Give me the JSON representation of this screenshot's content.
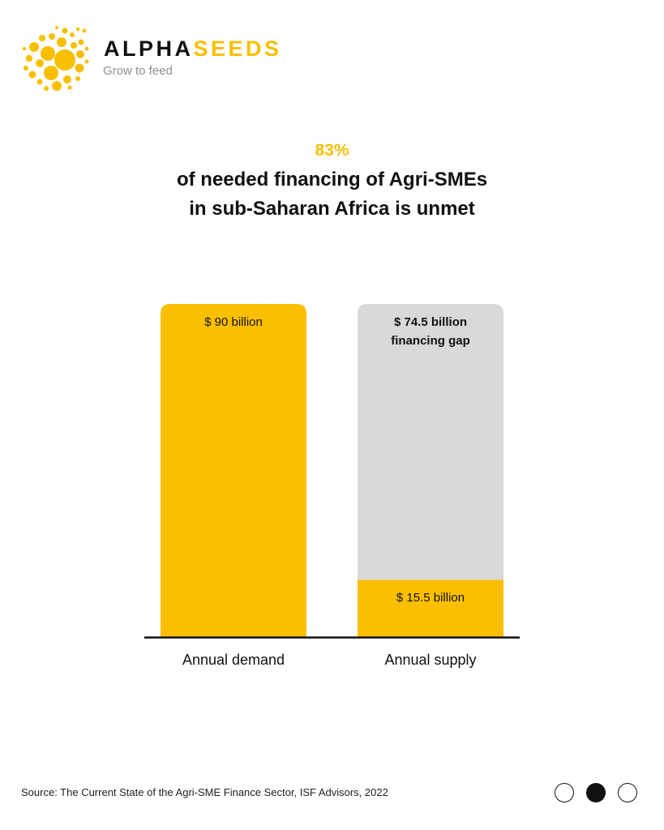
{
  "brand": {
    "name_part1": "ALPHA",
    "name_part2": "SEEDS",
    "tagline": "Grow to feed",
    "logo_icon": "seed-cluster-icon",
    "accent_color": "#f8bf00"
  },
  "headline": {
    "percent": "83%",
    "line1": "of needed financing of Agri-SMEs",
    "line2": "in sub-Saharan Africa is unmet"
  },
  "chart_data": {
    "type": "bar",
    "stacked": true,
    "categories": [
      "Annual demand",
      "Annual supply"
    ],
    "unit": "$ billion",
    "ylim": [
      0,
      90
    ],
    "grid": false,
    "legend": "none",
    "bars": [
      {
        "category": "Annual demand",
        "segments": [
          {
            "value": 90,
            "label": "$ 90 billion",
            "color": "#fbbf00"
          }
        ]
      },
      {
        "category": "Annual supply",
        "segments": [
          {
            "value": 15.5,
            "label": "$ 15.5 billion",
            "color": "#fbbf00"
          },
          {
            "value": 74.5,
            "label": "$ 74.5 billion",
            "label_line2": "financing gap",
            "color": "#d9d9d9",
            "bold": true
          }
        ]
      }
    ]
  },
  "footer": {
    "source": "Source:  The Current State of the Agri-SME Finance Sector, ISF Advisors, 2022",
    "pagination": {
      "total": 3,
      "active": 2
    }
  }
}
